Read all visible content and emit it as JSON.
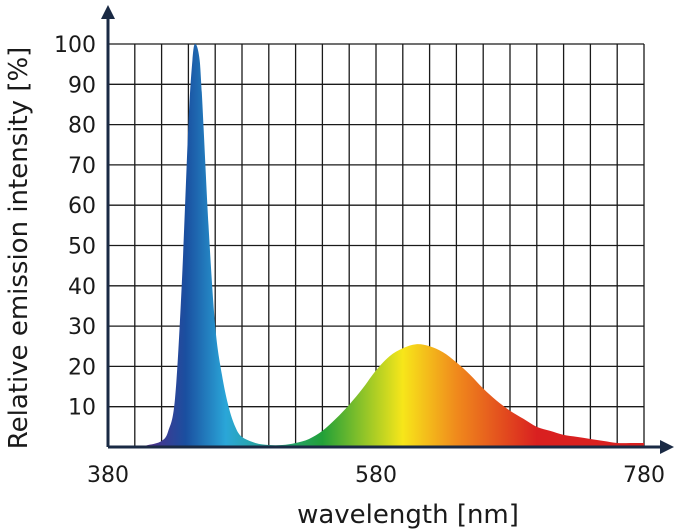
{
  "chart_data": {
    "type": "area",
    "xlabel": "wavelength [nm]",
    "ylabel": "Relative emission intensity [%]",
    "xlim": [
      380,
      780
    ],
    "ylim": [
      0,
      100
    ],
    "x_ticks": [
      380,
      580,
      780
    ],
    "x_tick_labels": [
      "380",
      "580",
      "780"
    ],
    "y_ticks": [
      10,
      20,
      30,
      40,
      50,
      60,
      70,
      80,
      90,
      100
    ],
    "y_tick_labels": [
      "10",
      "20",
      "30",
      "40",
      "50",
      "60",
      "70",
      "80",
      "90",
      "100"
    ],
    "grid": true,
    "x_grid_step": 20,
    "y_grid_step": 10,
    "fill": "visible spectrum gradient",
    "series": [
      {
        "x": [
          380,
          400,
          410,
          420,
          425,
          430,
          435,
          440,
          443,
          445,
          448,
          450,
          455,
          460,
          465,
          470,
          475,
          480,
          490,
          500,
          510,
          520,
          530,
          540,
          550,
          560,
          570,
          580,
          590,
          600,
          610,
          620,
          630,
          640,
          650,
          660,
          670,
          680,
          690,
          700,
          710,
          720,
          730,
          740,
          750,
          760,
          770,
          780
        ],
        "y": [
          0,
          0,
          0.5,
          1.5,
          4,
          12,
          40,
          80,
          96,
          100,
          97,
          88,
          55,
          30,
          18,
          10,
          5,
          2.5,
          1,
          0.5,
          0.5,
          1,
          2,
          4,
          7,
          10.5,
          14.5,
          19,
          22.5,
          24.5,
          25.5,
          25,
          23.5,
          21,
          18,
          14.5,
          11.5,
          9,
          7,
          5,
          4,
          3,
          2.5,
          2,
          1.5,
          1,
          1,
          1
        ]
      }
    ],
    "colors": {
      "axis": "#1a2a44",
      "grid": "#1a1a1a",
      "violet": "#5a2a86",
      "blue": "#1a4fa0",
      "cyan": "#2aa6d8",
      "green": "#22a038",
      "yellow": "#f7e61a",
      "orange": "#f08a1c",
      "red": "#d92020"
    }
  }
}
